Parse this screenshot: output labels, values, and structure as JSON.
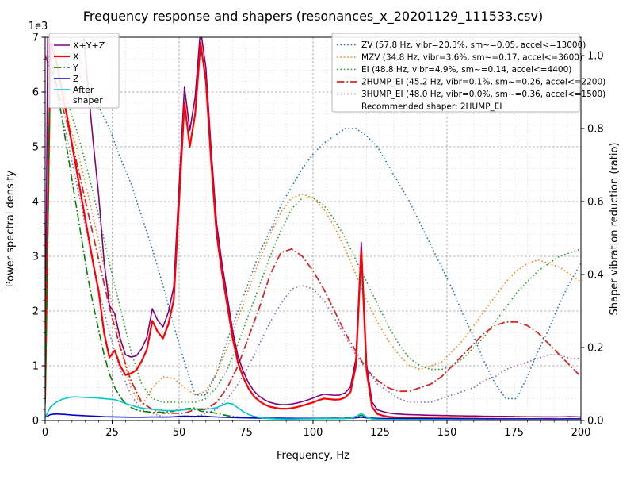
{
  "title": "Frequency response and shapers (resonances_x_20201129_111533.csv)",
  "xlabel": "Frequency, Hz",
  "ylabel_left": "Power spectral density",
  "ylabel_right": "Shaper vibration reduction (ratio)",
  "y_offset_text": "1e3",
  "recommended_label": "Recommended shaper: 2HUMP_EI",
  "axes": {
    "x_max": 200,
    "x_major_step": 25,
    "x_minor_step": 5,
    "x_ticks": [
      0,
      25,
      50,
      75,
      100,
      125,
      150,
      175,
      200
    ],
    "y_left_max": 7000,
    "y_left_major_step": 1000,
    "y_left_minor_step": 200,
    "y_left_ticks": [
      0,
      1000,
      2000,
      3000,
      4000,
      5000,
      6000,
      7000
    ],
    "y_left_tick_labels": [
      "0",
      "1",
      "2",
      "3",
      "4",
      "5",
      "6",
      "7"
    ],
    "y_right_max": 1.05,
    "y_right_ticks": [
      0,
      0.2,
      0.4,
      0.6,
      0.8,
      1.0
    ],
    "y_right_tick_labels": [
      "0.0",
      "0.2",
      "0.4",
      "0.6",
      "0.8",
      "1.0"
    ],
    "grid": true
  },
  "chart_data": {
    "type": "line",
    "xlim": [
      0,
      200
    ],
    "ylim_left": [
      0,
      7000
    ],
    "ylim_right": [
      0,
      1.05
    ],
    "x_psd": {
      "start": 0,
      "step": 2
    },
    "psd_series": [
      {
        "name": "X+Y+Z",
        "color": "#800080",
        "style": "solid",
        "width": 1.6,
        "values": [
          800,
          13700,
          12900,
          11800,
          10700,
          9550,
          8400,
          7250,
          6100,
          5050,
          4100,
          2900,
          2100,
          1950,
          1500,
          1200,
          1160,
          1180,
          1310,
          1520,
          2040,
          1830,
          1710,
          1980,
          2440,
          4280,
          6090,
          5300,
          5910,
          7150,
          6440,
          4920,
          3600,
          2870,
          2260,
          1630,
          1170,
          890,
          680,
          535,
          440,
          375,
          330,
          305,
          290,
          290,
          300,
          320,
          345,
          375,
          410,
          450,
          480,
          470,
          460,
          465,
          505,
          615,
          1125,
          3255,
          1020,
          340,
          195,
          165,
          140,
          125,
          118,
          112,
          108,
          105,
          103,
          99,
          96,
          95,
          92,
          91,
          88,
          87,
          85,
          83,
          82,
          80,
          78,
          78,
          76,
          75,
          75,
          74,
          72,
          70,
          69,
          69,
          68,
          66,
          66,
          66,
          67,
          69,
          72,
          69,
          64
        ]
      },
      {
        "name": "X",
        "color": "#ff0000",
        "style": "solid",
        "width": 2.2,
        "values": [
          400,
          6900,
          6600,
          6100,
          5600,
          5050,
          4500,
          3950,
          3400,
          2850,
          2350,
          1600,
          1150,
          1280,
          1000,
          830,
          860,
          920,
          1080,
          1300,
          1820,
          1620,
          1500,
          1760,
          2200,
          4000,
          5800,
          5000,
          5600,
          6900,
          6200,
          4700,
          3400,
          2700,
          2100,
          1500,
          1050,
          780,
          580,
          440,
          350,
          290,
          250,
          230,
          215,
          215,
          225,
          245,
          270,
          300,
          330,
          370,
          400,
          390,
          380,
          385,
          420,
          520,
          1000,
          3100,
          900,
          250,
          120,
          90,
          70,
          60,
          55,
          50,
          48,
          45,
          45,
          42,
          40,
          40,
          38,
          38,
          36,
          36,
          35,
          34,
          34,
          33,
          32,
          32,
          31,
          30,
          30,
          30,
          30,
          29,
          28,
          28,
          28,
          27,
          27,
          26,
          26,
          28,
          30,
          28,
          26
        ]
      },
      {
        "name": "Y",
        "color": "#008000",
        "style": "dashdot",
        "width": 1.6,
        "values": [
          300,
          6600,
          6200,
          5600,
          5000,
          4400,
          3800,
          3200,
          2600,
          2100,
          1650,
          1200,
          850,
          600,
          430,
          310,
          240,
          195,
          170,
          160,
          150,
          150,
          150,
          160,
          170,
          200,
          210,
          220,
          230,
          170,
          160,
          150,
          130,
          110,
          90,
          75,
          65,
          58,
          52,
          48,
          45,
          40,
          37,
          35,
          33,
          32,
          32,
          33,
          34,
          36,
          38,
          40,
          42,
          42,
          42,
          42,
          45,
          55,
          75,
          95,
          70,
          45,
          35,
          32,
          30,
          30,
          29,
          28,
          27,
          26,
          25,
          24,
          24,
          23,
          22,
          21,
          21,
          20,
          20,
          20,
          19,
          18,
          18,
          17,
          17,
          17,
          16,
          16,
          16,
          15,
          15,
          15,
          14,
          14,
          15,
          14,
          14,
          15,
          17,
          15,
          13
        ]
      },
      {
        "name": "Z",
        "color": "#0000cd",
        "style": "solid",
        "width": 1.6,
        "values": [
          60,
          110,
          120,
          115,
          110,
          100,
          95,
          90,
          85,
          80,
          75,
          70,
          68,
          66,
          64,
          62,
          60,
          60,
          60,
          62,
          65,
          64,
          62,
          64,
          68,
          75,
          80,
          78,
          76,
          80,
          78,
          70,
          65,
          60,
          58,
          55,
          52,
          50,
          48,
          46,
          45,
          44,
          43,
          42,
          42,
          41,
          41,
          40,
          40,
          40,
          40,
          40,
          40,
          39,
          39,
          39,
          40,
          42,
          50,
          60,
          48,
          42,
          40,
          38,
          37,
          36,
          35,
          35,
          34,
          34,
          33,
          33,
          32,
          32,
          31,
          31,
          30,
          30,
          30,
          29,
          29,
          29,
          28,
          28,
          28,
          27,
          27,
          27,
          26,
          26,
          26,
          26,
          26,
          25,
          25,
          25,
          25,
          26,
          27,
          26,
          25
        ]
      },
      {
        "name": "After shaper",
        "legend_lines": [
          "After",
          "shaper"
        ],
        "color": "#00c8c8",
        "style": "solid",
        "width": 1.6,
        "values": [
          60,
          250,
          330,
          380,
          410,
          430,
          430,
          425,
          420,
          415,
          410,
          400,
          390,
          380,
          350,
          310,
          280,
          250,
          230,
          215,
          205,
          195,
          185,
          180,
          180,
          185,
          195,
          200,
          210,
          215,
          210,
          215,
          235,
          275,
          320,
          300,
          230,
          160,
          110,
          75,
          55,
          42,
          35,
          30,
          28,
          27,
          27,
          28,
          29,
          30,
          31,
          33,
          35,
          34,
          33,
          33,
          35,
          42,
          70,
          130,
          60,
          30,
          22,
          20,
          18,
          17,
          16,
          16,
          15,
          15,
          15,
          14,
          14,
          14,
          13,
          13,
          13,
          12,
          12,
          12,
          12,
          11,
          11,
          11,
          11,
          10,
          10,
          10,
          10,
          10,
          10,
          10,
          10,
          10,
          9,
          9,
          9,
          10,
          11,
          10,
          9
        ]
      }
    ],
    "x_shapers": {
      "start": 0,
      "step": 4
    },
    "shaper_series": [
      {
        "name": "ZV",
        "label": "ZV (57.8 Hz, vibr=20.3%, sm~=0.05, accel<=13000)",
        "color": "#1f77b4",
        "style": "dotted",
        "width": 1.6,
        "values": [
          1.0,
          0.99,
          0.98,
          0.95,
          0.91,
          0.86,
          0.8,
          0.72,
          0.65,
          0.56,
          0.47,
          0.37,
          0.26,
          0.16,
          0.07,
          0.07,
          0.13,
          0.22,
          0.3,
          0.38,
          0.46,
          0.52,
          0.59,
          0.64,
          0.69,
          0.73,
          0.76,
          0.78,
          0.8,
          0.8,
          0.78,
          0.75,
          0.7,
          0.65,
          0.6,
          0.54,
          0.48,
          0.42,
          0.36,
          0.29,
          0.23,
          0.16,
          0.1,
          0.06,
          0.06,
          0.12,
          0.19,
          0.25,
          0.32,
          0.38,
          0.43
        ]
      },
      {
        "name": "MZV",
        "label": "MZV (34.8 Hz, vibr=3.6%, sm~=0.17, accel<=3600)",
        "color": "#ff7f0e",
        "style": "dotted",
        "width": 1.6,
        "values": [
          1.0,
          0.93,
          0.84,
          0.74,
          0.62,
          0.49,
          0.35,
          0.21,
          0.09,
          0.04,
          0.09,
          0.12,
          0.115,
          0.09,
          0.07,
          0.08,
          0.13,
          0.2,
          0.28,
          0.36,
          0.44,
          0.51,
          0.57,
          0.61,
          0.62,
          0.61,
          0.58,
          0.53,
          0.47,
          0.4,
          0.33,
          0.27,
          0.22,
          0.18,
          0.15,
          0.14,
          0.15,
          0.16,
          0.19,
          0.22,
          0.26,
          0.3,
          0.34,
          0.38,
          0.41,
          0.43,
          0.44,
          0.43,
          0.42,
          0.4,
          0.38
        ]
      },
      {
        "name": "EI",
        "label": "EI (48.8 Hz, vibr=4.9%, sm~=0.14, accel<=4400)",
        "color": "#2ca02c",
        "style": "dotted",
        "width": 1.6,
        "values": [
          1.0,
          0.95,
          0.88,
          0.79,
          0.68,
          0.56,
          0.43,
          0.31,
          0.19,
          0.1,
          0.06,
          0.05,
          0.05,
          0.05,
          0.05,
          0.06,
          0.09,
          0.14,
          0.21,
          0.29,
          0.37,
          0.45,
          0.52,
          0.58,
          0.61,
          0.61,
          0.59,
          0.55,
          0.5,
          0.44,
          0.38,
          0.32,
          0.26,
          0.21,
          0.17,
          0.15,
          0.14,
          0.14,
          0.15,
          0.17,
          0.2,
          0.23,
          0.27,
          0.31,
          0.35,
          0.38,
          0.41,
          0.43,
          0.45,
          0.46,
          0.47
        ]
      },
      {
        "name": "2HUMP_EI",
        "label": "2HUMP_EI (45.2 Hz, vibr=0.1%, sm~=0.26, accel<=2200)",
        "color": "#d62728",
        "style": "dashdot",
        "width": 1.8,
        "values": [
          1.0,
          0.92,
          0.82,
          0.7,
          0.57,
          0.44,
          0.31,
          0.2,
          0.11,
          0.05,
          0.03,
          0.02,
          0.02,
          0.02,
          0.03,
          0.03,
          0.05,
          0.09,
          0.15,
          0.23,
          0.31,
          0.4,
          0.46,
          0.47,
          0.45,
          0.41,
          0.36,
          0.3,
          0.24,
          0.19,
          0.14,
          0.11,
          0.09,
          0.08,
          0.08,
          0.09,
          0.1,
          0.12,
          0.15,
          0.18,
          0.21,
          0.24,
          0.26,
          0.27,
          0.27,
          0.26,
          0.24,
          0.21,
          0.18,
          0.15,
          0.12
        ]
      },
      {
        "name": "3HUMP_EI",
        "label": "3HUMP_EI (48.0 Hz, vibr=0.0%, sm~=0.36, accel<=1500)",
        "color": "#9467bd",
        "style": "dotted",
        "width": 1.6,
        "values": [
          1.0,
          0.9,
          0.78,
          0.64,
          0.5,
          0.36,
          0.24,
          0.14,
          0.07,
          0.03,
          0.02,
          0.01,
          0.01,
          0.01,
          0.01,
          0.02,
          0.03,
          0.06,
          0.1,
          0.15,
          0.21,
          0.27,
          0.32,
          0.36,
          0.37,
          0.36,
          0.33,
          0.28,
          0.23,
          0.18,
          0.14,
          0.1,
          0.08,
          0.06,
          0.05,
          0.05,
          0.05,
          0.06,
          0.07,
          0.08,
          0.09,
          0.11,
          0.12,
          0.14,
          0.15,
          0.16,
          0.17,
          0.18,
          0.18,
          0.17,
          0.17
        ]
      }
    ]
  }
}
